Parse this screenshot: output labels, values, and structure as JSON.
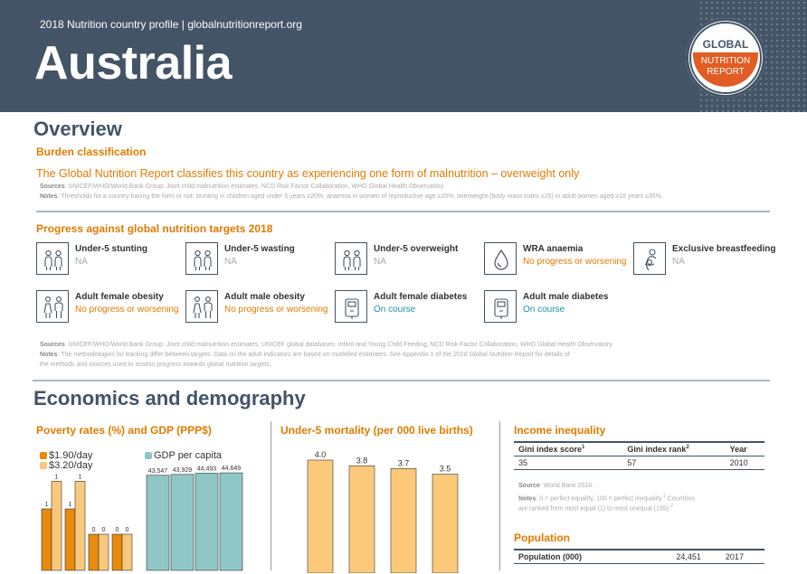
{
  "header": {
    "subtitle": "2018 Nutrition country profile  |  globalnutritionreport.org",
    "country": "Australia",
    "logo_line1": "GLOBAL",
    "logo_line2": "NUTRITION",
    "logo_line3": "REPORT"
  },
  "overview": {
    "title": "Overview",
    "burden_heading": "Burden classification",
    "burden_text": "The Global Nutrition Report classifies this country as experiencing one form of malnutrition – overweight only",
    "burden_sources_label": "Sources",
    "burden_sources": ": UNICEF/WHO/World Bank Group: Joint child malnutrition estimates, NCD Risk Factor Collaboration, WHO Global Health Observatory.",
    "burden_notes_label": "Notes",
    "burden_notes": ": Thresholds for a country having the form or not: stunting in children aged under 5 years ≥20%; anaemia in women of reproductive age ≥20%; overweight (body mass index ≥25) in adult women aged ≥18 years ≥35%.",
    "progress_heading": "Progress against global nutrition targets 2018",
    "indicators": [
      {
        "title": "Under-5 stunting",
        "status": "NA",
        "status_color": "#aaaaaa",
        "icon": "child-pair-icon"
      },
      {
        "title": "Under-5 wasting",
        "status": "NA",
        "status_color": "#aaaaaa",
        "icon": "child-pair-icon"
      },
      {
        "title": "Under-5 overweight",
        "status": "NA",
        "status_color": "#aaaaaa",
        "icon": "child-pair-icon"
      },
      {
        "title": "WRA anaemia",
        "status": "No progress or worsening",
        "status_color": "#e07b00",
        "icon": "blood-drop-icon"
      },
      {
        "title": "Exclusive breastfeeding",
        "status": "NA",
        "status_color": "#aaaaaa",
        "icon": "breastfeeding-icon"
      },
      {
        "title": "Adult female obesity",
        "status": "No progress or worsening",
        "status_color": "#e07b00",
        "icon": "adult-pair-icon"
      },
      {
        "title": "Adult male obesity",
        "status": "No progress or worsening",
        "status_color": "#e07b00",
        "icon": "adult-pair-icon"
      },
      {
        "title": "Adult female diabetes",
        "status": "On course",
        "status_color": "#1f8fa8",
        "icon": "glucose-meter-icon"
      },
      {
        "title": "Adult male diabetes",
        "status": "On course",
        "status_color": "#1f8fa8",
        "icon": "glucose-meter-icon"
      }
    ],
    "progress_sources_label": "Sources",
    "progress_sources": ": UNICEF/WHO/World Bank Group: Joint child malnutrition estimates, UNICEF global databases: Infant and Young Child Feeding, NCD Risk Factor Collaboration, WHO Global Health Observatory.",
    "progress_notes_label": "Notes",
    "progress_notes_1": ": The methodologies for tracking differ between targets. Data on the adult indicators are based on modelled estimates. See Appendix 1 of the ",
    "progress_notes_em": "2018 Global Nutrition Report",
    "progress_notes_2": " for details of",
    "progress_notes_3": "the methods and sources used to assess progress towards global nutrition targets."
  },
  "economics": {
    "title": "Economics and demography",
    "poverty_heading": "Poverty rates (%) and GDP (PPP$)",
    "mortality_heading": "Under-5 mortality (per 000 live births)",
    "inequality_heading": "Income inequality",
    "population_heading": "Population"
  },
  "chart_data": [
    {
      "type": "bar",
      "title": "Poverty rates (%) and GDP (PPP$)",
      "series": [
        {
          "name": "$1.90/day",
          "color": "#e88a0c",
          "values": [
            1,
            1,
            0,
            0
          ]
        },
        {
          "name": "$3.20/day",
          "color": "#f9c87c",
          "values": [
            1,
            1,
            0,
            0
          ]
        }
      ],
      "series_gdp": {
        "name": "GDP per capita",
        "color": "#8fc7c6",
        "values": [
          43547,
          43929,
          44493,
          44649
        ],
        "labels": [
          "43,547",
          "43,929",
          "44,493",
          "44,649"
        ]
      }
    },
    {
      "type": "bar",
      "title": "Under-5 mortality (per 000 live births)",
      "values": [
        4.0,
        3.8,
        3.7,
        3.5
      ],
      "labels": [
        "4.0",
        "3.8",
        "3.7",
        "3.5"
      ],
      "color": "#fcc97a"
    }
  ],
  "inequality_table": {
    "headers": [
      "Gini index score",
      "Gini index rank",
      "Year"
    ],
    "header_sups": [
      "1",
      "2",
      ""
    ],
    "row": [
      "35",
      "57",
      "2010"
    ]
  },
  "inequality_source_label": "Source",
  "inequality_source": ": World Bank 2018.",
  "inequality_notes_label": "Notes",
  "inequality_notes_1": ": 0 = perfect equality, 100 = perfect inequality.",
  "inequality_notes_sup1": "1",
  "inequality_notes_2": " Countries",
  "inequality_notes_3": "are ranked from most equal (1) to most unequal (155).",
  "inequality_notes_sup2": "2",
  "population_table": {
    "label": "Population (000)",
    "value": "24,451",
    "year": "2017"
  }
}
